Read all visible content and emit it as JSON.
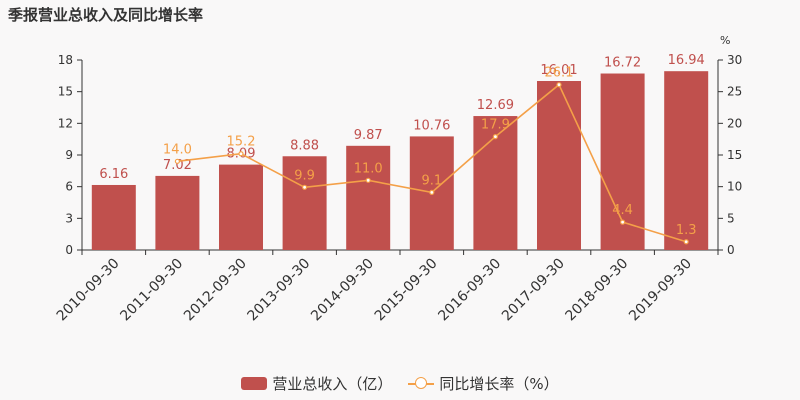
{
  "title": "季报营业总收入及同比增长率",
  "chart_data": {
    "type": "bar",
    "categories": [
      "2010-09-30",
      "2011-09-30",
      "2012-09-30",
      "2013-09-30",
      "2014-09-30",
      "2015-09-30",
      "2016-09-30",
      "2017-09-30",
      "2018-09-30",
      "2019-09-30"
    ],
    "series": [
      {
        "name": "营业总收入（亿）",
        "type": "bar",
        "axis": "left",
        "color": "#c0504d",
        "values": [
          6.16,
          7.02,
          8.09,
          8.88,
          9.87,
          10.76,
          12.69,
          16.01,
          16.72,
          16.94
        ],
        "labels": [
          "6.16",
          "7.02",
          "8.09",
          "8.88",
          "9.87",
          "10.76",
          "12.69",
          "16.01",
          "16.72",
          "16.94"
        ]
      },
      {
        "name": "同比增长率（%）",
        "type": "line",
        "axis": "right",
        "color": "#f4a048",
        "values": [
          null,
          14.0,
          15.2,
          9.9,
          11.0,
          9.1,
          17.9,
          26.1,
          4.4,
          1.3
        ],
        "labels": [
          "",
          "14.0",
          "15.2",
          "9.9",
          "11.0",
          "9.1",
          "17.9",
          "26.1",
          "4.4",
          "1.3"
        ]
      }
    ],
    "y_left": {
      "min": 0,
      "max": 18,
      "ticks": [
        "0",
        "3",
        "6",
        "9",
        "12",
        "15",
        "18"
      ]
    },
    "y_right": {
      "min": 0,
      "max": 30,
      "unit": "%",
      "ticks": [
        "0",
        "5",
        "10",
        "15",
        "20",
        "25",
        "30"
      ]
    },
    "grid": false,
    "legend": "bottom"
  },
  "legend": {
    "bar_label": "营业总收入（亿）",
    "line_label": "同比增长率（%）"
  }
}
